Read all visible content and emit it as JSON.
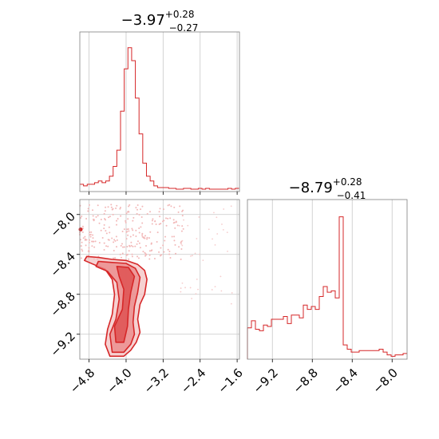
{
  "chart_data": [
    {
      "type": "histogram",
      "panel": "top-left",
      "title": {
        "main": "−3.97",
        "sup": "+0.28",
        "sub": "−0.27"
      },
      "xlim": [
        -5.0,
        -1.55
      ],
      "grid": true,
      "color": "#d62728",
      "bin_edges": [
        -5.0,
        -4.92,
        -4.84,
        -4.76,
        -4.68,
        -4.6,
        -4.52,
        -4.44,
        -4.36,
        -4.28,
        -4.2,
        -4.12,
        -4.04,
        -3.96,
        -3.88,
        -3.8,
        -3.72,
        -3.64,
        -3.56,
        -3.48,
        -3.4,
        -3.32,
        -3.24,
        -3.16,
        -3.08,
        -3.0,
        -2.92,
        -2.84,
        -2.76,
        -2.68,
        -2.6,
        -2.52,
        -2.44,
        -2.36,
        -2.28,
        -2.2,
        -2.12,
        -2.04,
        -1.96,
        -1.88,
        -1.8,
        -1.72,
        -1.64,
        -1.56
      ],
      "counts": [
        3,
        2,
        3,
        3,
        4,
        5,
        4,
        5,
        8,
        14,
        24,
        48,
        74,
        87,
        79,
        56,
        34,
        16,
        8,
        5,
        2,
        1,
        1,
        1,
        0.5,
        0.5,
        0,
        0,
        0.5,
        0.5,
        0,
        0,
        0.5,
        0,
        0.5,
        0,
        0,
        0,
        0,
        0,
        0.5,
        0,
        0.5
      ]
    },
    {
      "type": "histogram",
      "panel": "bottom-right",
      "title": {
        "main": "−8.79",
        "sup": "+0.28",
        "sub": "−0.41"
      },
      "xlim": [
        -9.45,
        -7.85
      ],
      "xticks": [
        -9.2,
        -8.8,
        -8.4,
        -8.0
      ],
      "xticklabels": [
        "−9.2",
        "−8.8",
        "−8.4",
        "−8.0"
      ],
      "grid": true,
      "color": "#d62728",
      "bin_edges": [
        -9.45,
        -9.41,
        -9.37,
        -9.33,
        -9.29,
        -9.25,
        -9.21,
        -9.17,
        -9.13,
        -9.09,
        -9.05,
        -9.01,
        -8.97,
        -8.93,
        -8.89,
        -8.85,
        -8.81,
        -8.77,
        -8.73,
        -8.69,
        -8.65,
        -8.61,
        -8.57,
        -8.53,
        -8.49,
        -8.45,
        -8.41,
        -8.37,
        -8.33,
        -8.29,
        -8.25,
        -8.21,
        -8.17,
        -8.13,
        -8.09,
        -8.05,
        -8.01,
        -7.97,
        -7.93,
        -7.89,
        -7.85
      ],
      "counts": [
        22,
        27,
        21,
        20,
        24,
        23,
        28,
        28,
        28,
        30,
        25,
        31,
        31,
        29,
        38,
        35,
        37,
        35,
        44,
        51,
        47,
        48,
        43,
        100,
        10,
        7,
        5,
        5,
        6,
        6,
        6,
        6,
        6,
        7,
        5,
        3,
        2,
        3,
        3,
        4
      ]
    },
    {
      "type": "2d-density",
      "panel": "bottom-left",
      "xlim": [
        -5.0,
        -1.55
      ],
      "ylim": [
        -9.45,
        -7.85
      ],
      "xticks": [
        -4.8,
        -4.0,
        -3.2,
        -2.4,
        -1.6
      ],
      "xticklabels": [
        "−4.8",
        "−4.0",
        "−3.2",
        "−2.4",
        "−1.6"
      ],
      "yticks": [
        -8.0,
        -8.4,
        -8.8,
        -9.2
      ],
      "yticklabels": [
        "−8.0",
        "−8.4",
        "−8.8",
        "−9.2"
      ],
      "grid": true,
      "color": "#d62728",
      "contour_levels": [
        [
          [
            -4.85,
            -8.42
          ],
          [
            -4.6,
            -8.43
          ],
          [
            -4.3,
            -8.45
          ],
          [
            -4.0,
            -8.46
          ],
          [
            -3.75,
            -8.5
          ],
          [
            -3.6,
            -8.56
          ],
          [
            -3.55,
            -8.65
          ],
          [
            -3.6,
            -8.8
          ],
          [
            -3.7,
            -8.9
          ],
          [
            -3.75,
            -9.05
          ],
          [
            -3.7,
            -9.18
          ],
          [
            -3.78,
            -9.28
          ],
          [
            -3.9,
            -9.36
          ],
          [
            -4.05,
            -9.42
          ],
          [
            -4.35,
            -9.42
          ],
          [
            -4.45,
            -9.3
          ],
          [
            -4.4,
            -9.15
          ],
          [
            -4.3,
            -9.0
          ],
          [
            -4.25,
            -8.8
          ],
          [
            -4.3,
            -8.65
          ],
          [
            -4.45,
            -8.55
          ],
          [
            -4.7,
            -8.5
          ],
          [
            -4.9,
            -8.46
          ]
        ],
        [
          [
            -4.6,
            -8.47
          ],
          [
            -4.3,
            -8.48
          ],
          [
            -4.0,
            -8.49
          ],
          [
            -3.8,
            -8.54
          ],
          [
            -3.7,
            -8.63
          ],
          [
            -3.75,
            -8.78
          ],
          [
            -3.82,
            -8.92
          ],
          [
            -3.85,
            -9.08
          ],
          [
            -3.82,
            -9.2
          ],
          [
            -3.9,
            -9.3
          ],
          [
            -4.05,
            -9.38
          ],
          [
            -4.3,
            -9.38
          ],
          [
            -4.35,
            -9.2
          ],
          [
            -4.22,
            -9.05
          ],
          [
            -4.15,
            -8.85
          ],
          [
            -4.2,
            -8.68
          ],
          [
            -4.4,
            -8.57
          ],
          [
            -4.65,
            -8.52
          ]
        ],
        [
          [
            -4.2,
            -8.52
          ],
          [
            -3.95,
            -8.53
          ],
          [
            -3.82,
            -8.62
          ],
          [
            -3.9,
            -8.78
          ],
          [
            -3.95,
            -8.95
          ],
          [
            -3.97,
            -9.12
          ],
          [
            -4.05,
            -9.28
          ],
          [
            -4.22,
            -9.28
          ],
          [
            -4.25,
            -9.12
          ],
          [
            -4.08,
            -8.95
          ],
          [
            -4.05,
            -8.75
          ],
          [
            -4.15,
            -8.62
          ]
        ]
      ]
    }
  ]
}
